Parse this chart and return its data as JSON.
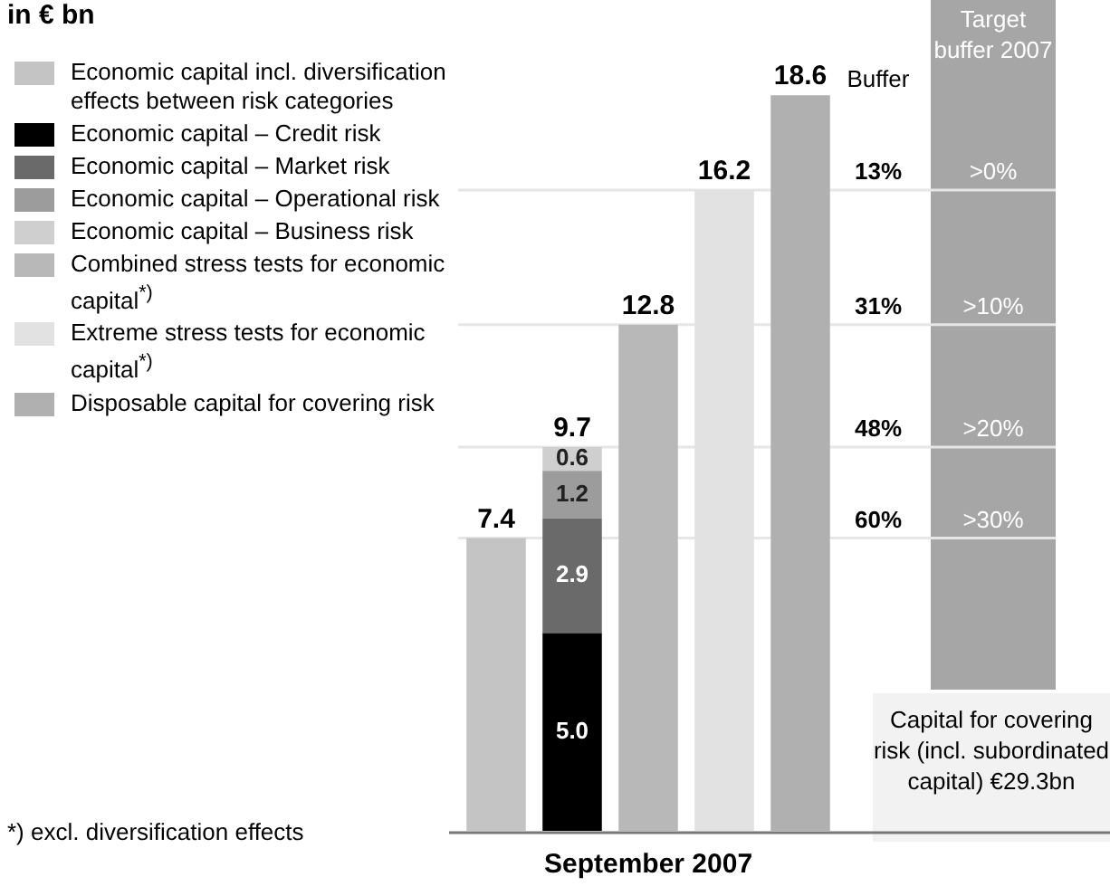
{
  "chart_data": {
    "type": "bar",
    "title": "in € bn",
    "xlabel": "September 2007",
    "stacked": true,
    "legend": "top left",
    "grid": false,
    "categories": [
      null,
      null,
      null,
      null,
      null
    ],
    "series": [
      {
        "name": "Economic capital incl. diversification effects between risk categories",
        "color": "#c4c4c4",
        "values": [
          7.4,
          null,
          null,
          null,
          null
        ],
        "value_labels": [
          "7.4",
          null,
          null,
          null,
          null
        ]
      },
      {
        "name": "Economic capital – Credit risk",
        "color": "#000000",
        "values": [
          null,
          5.0,
          null,
          null,
          null
        ],
        "value_labels": [
          null,
          "5.0",
          null,
          null,
          null
        ]
      },
      {
        "name": "Economic capital – Market risk",
        "color": "#6a6a6a",
        "values": [
          null,
          2.9,
          null,
          null,
          null
        ],
        "value_labels": [
          null,
          "2.9",
          null,
          null,
          null
        ]
      },
      {
        "name": "Economic capital – Operational risk",
        "color": "#9c9c9c",
        "values": [
          null,
          1.2,
          null,
          null,
          null
        ],
        "value_labels": [
          null,
          "1.2",
          null,
          null,
          null
        ]
      },
      {
        "name": "Economic capital – Business risk",
        "color": "#cfcfcf",
        "values": [
          null,
          0.6,
          null,
          null,
          null
        ],
        "value_labels": [
          null,
          "0.6",
          null,
          null,
          null
        ]
      },
      {
        "name": "Combined stress tests for economic capital$^{*)}$",
        "color": "#b8b8b8",
        "values": [
          null,
          null,
          12.8,
          null,
          null
        ],
        "value_labels": [
          null,
          null,
          "12.8",
          null,
          null
        ]
      },
      {
        "name": "Extreme stress tests for economic capital$^{*)}$",
        "color": "#e2e2e2",
        "values": [
          null,
          null,
          null,
          16.2,
          null
        ],
        "value_labels": [
          null,
          null,
          null,
          "16.2",
          null
        ]
      },
      {
        "name": "Disposable capital for covering risk",
        "color": "#b0b0b0",
        "values": [
          null,
          null,
          null,
          null,
          18.6
        ],
        "value_labels": [
          null,
          null,
          null,
          null,
          "18.6"
        ]
      }
    ],
    "totals": [
      null,
      "9.7",
      null,
      null,
      null
    ],
    "ref_lines": [
      {
        "axis": "y",
        "value": 16.2,
        "color": "#e6e6e6"
      },
      {
        "axis": "y",
        "value": 12.8,
        "color": "#e6e6e6"
      },
      {
        "axis": "y",
        "value": 9.7,
        "color": "#e6e6e6"
      },
      {
        "axis": "y",
        "value": 7.4,
        "color": "#e6e6e6"
      }
    ],
    "annotations": [
      "Buffer",
      "Target buffer 2007",
      "13%",
      ">0%",
      "31%",
      ">10%",
      "48%",
      ">20%",
      "60%",
      ">30%",
      "Capital for covering risk (incl. subordinated capital) €29.3bn",
      "*) excl. diversification effects"
    ]
  }
}
